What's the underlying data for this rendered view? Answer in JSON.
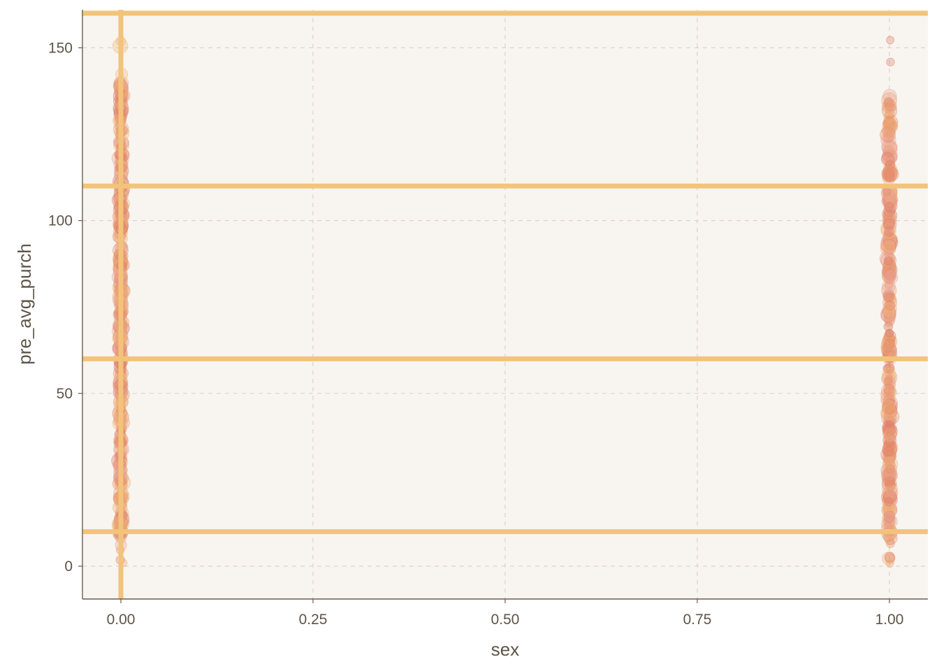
{
  "chart_data": {
    "type": "scatter",
    "title": "",
    "xlabel": "sex",
    "ylabel": "pre_avg_purch",
    "xlim": [
      -0.05,
      1.05
    ],
    "ylim": [
      -9.5,
      161
    ],
    "x_ticks": [
      0.0,
      0.25,
      0.5,
      0.75,
      1.0
    ],
    "x_tick_labels": [
      "0.00",
      "0.25",
      "0.50",
      "0.75",
      "1.00"
    ],
    "y_ticks": [
      0,
      50,
      100,
      150
    ],
    "y_tick_labels": [
      "0",
      "50",
      "100",
      "150"
    ],
    "grid": true,
    "legend": "none",
    "reference_lines": {
      "horizontal_y": [
        10,
        60,
        110,
        160
      ],
      "vertical_x": [
        0
      ]
    },
    "series": [
      {
        "x_value": 0,
        "y_min": 0,
        "y_max": 152,
        "dense_range": [
          8,
          140
        ]
      },
      {
        "x_value": 1,
        "y_min": -1,
        "y_max": 154,
        "dense_range": [
          8,
          135
        ]
      }
    ],
    "colors": {
      "panel_background": "#f8f5f0",
      "grid": "#dcd3c8",
      "axis": "#6b5d4b",
      "reference_line": "#f2c47a",
      "points": [
        "#de7a66",
        "#e58e6d",
        "#eda474",
        "#f0b47a",
        "#e8a595"
      ]
    }
  }
}
